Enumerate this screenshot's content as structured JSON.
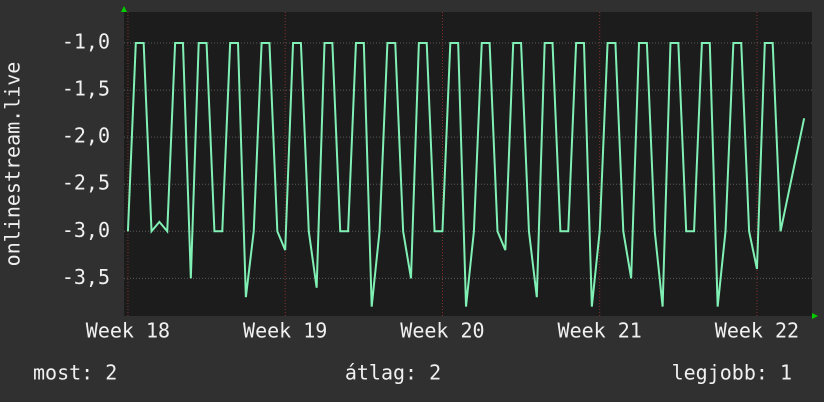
{
  "chart_data": {
    "type": "line",
    "y_label": "onlinestream.live",
    "x": [
      18,
      18.05,
      18.1,
      18.15,
      18.2,
      18.25,
      18.3,
      18.35,
      18.4,
      18.45,
      18.5,
      18.55,
      18.6,
      18.65,
      18.7,
      18.75,
      18.8,
      18.85,
      18.9,
      18.95,
      19,
      19.05,
      19.1,
      19.15,
      19.2,
      19.25,
      19.3,
      19.35,
      19.4,
      19.45,
      19.5,
      19.55,
      19.6,
      19.65,
      19.7,
      19.75,
      19.8,
      19.85,
      19.9,
      19.95,
      20,
      20.05,
      20.1,
      20.15,
      20.2,
      20.25,
      20.3,
      20.35,
      20.4,
      20.45,
      20.5,
      20.55,
      20.6,
      20.65,
      20.7,
      20.75,
      20.8,
      20.85,
      20.9,
      20.95,
      21,
      21.05,
      21.1,
      21.15,
      21.2,
      21.25,
      21.3,
      21.35,
      21.4,
      21.45,
      21.5,
      21.55,
      21.6,
      21.65,
      21.7,
      21.75,
      21.8,
      21.85,
      21.9,
      21.95,
      22,
      22.05,
      22.1,
      22.15,
      22.2,
      22.25,
      22.3
    ],
    "values": [
      -3,
      -1,
      -1,
      -3,
      -2.9,
      -3,
      -1,
      -1,
      -3.5,
      -1,
      -1,
      -3,
      -3,
      -1,
      -1,
      -3.7,
      -3,
      -1,
      -1,
      -3,
      -3.2,
      -1,
      -1,
      -3,
      -3.6,
      -1,
      -1,
      -3,
      -3,
      -1,
      -1,
      -3.8,
      -3,
      -1,
      -1,
      -3,
      -3.5,
      -1,
      -1,
      -3,
      -3,
      -1,
      -1,
      -3.8,
      -3,
      -1,
      -1,
      -3,
      -3.2,
      -1,
      -1,
      -3,
      -3.7,
      -1,
      -1,
      -3,
      -3,
      -1,
      -1,
      -3.8,
      -3,
      -1,
      -1,
      -3,
      -3.5,
      -1,
      -1,
      -3,
      -3.8,
      -1,
      -1,
      -3,
      -3,
      -1,
      -1,
      -3.8,
      -3,
      -1,
      -1,
      -3,
      -3.4,
      -1,
      -1,
      -3,
      -2.6,
      -2.2,
      -1.8
    ],
    "color": "#80f0b4",
    "xlim": [
      17.975,
      22.35
    ],
    "xticks": [
      {
        "value": 18,
        "label": "Week 18"
      },
      {
        "value": 19,
        "label": "Week 19"
      },
      {
        "value": 20,
        "label": "Week 20"
      },
      {
        "value": 21,
        "label": "Week 21"
      },
      {
        "value": 22,
        "label": "Week 22"
      }
    ],
    "ylim": [
      -3.9,
      -0.67
    ],
    "yticks": [
      {
        "value": -1,
        "label": "-1,0"
      },
      {
        "value": -1.5,
        "label": "-1,5"
      },
      {
        "value": -2,
        "label": "-2,0"
      },
      {
        "value": -2.5,
        "label": "-2,5"
      },
      {
        "value": -3,
        "label": "-3,0"
      },
      {
        "value": -3.5,
        "label": "-3,5"
      }
    ],
    "grid": true,
    "stats": [
      "most: 2",
      "átlag: 2",
      "legjobb: 1"
    ]
  }
}
